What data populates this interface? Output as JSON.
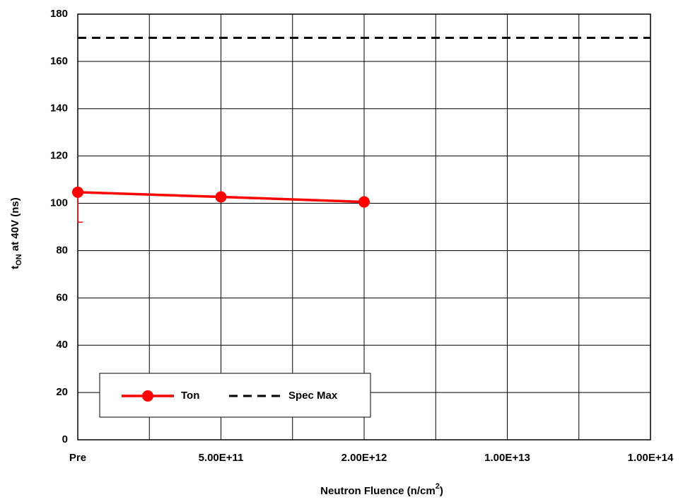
{
  "chart_data": {
    "type": "line",
    "x_label": [
      "Neutron Fluence (n/cm",
      "2",
      ")"
    ],
    "y_label": [
      "t",
      "ON",
      " at 40V (ns)"
    ],
    "categories": [
      "Pre",
      "5.00E+11",
      "2.00E+12",
      "1.00E+13",
      "1.00E+14"
    ],
    "series": [
      {
        "name": "Ton",
        "color": "#ff0000",
        "values": [
          104.7,
          102.7,
          100.6,
          null,
          null
        ],
        "error_low": [
          92,
          null,
          null,
          null,
          null
        ],
        "marker": "circle"
      },
      {
        "name": "Spec Max",
        "color": "#000000",
        "values": [
          170,
          170,
          170,
          170,
          170
        ],
        "dashed": true
      }
    ],
    "ylim": [
      0,
      180
    ],
    "yticks": [
      0,
      20,
      40,
      60,
      80,
      100,
      120,
      140,
      160,
      180
    ],
    "grid": true
  }
}
